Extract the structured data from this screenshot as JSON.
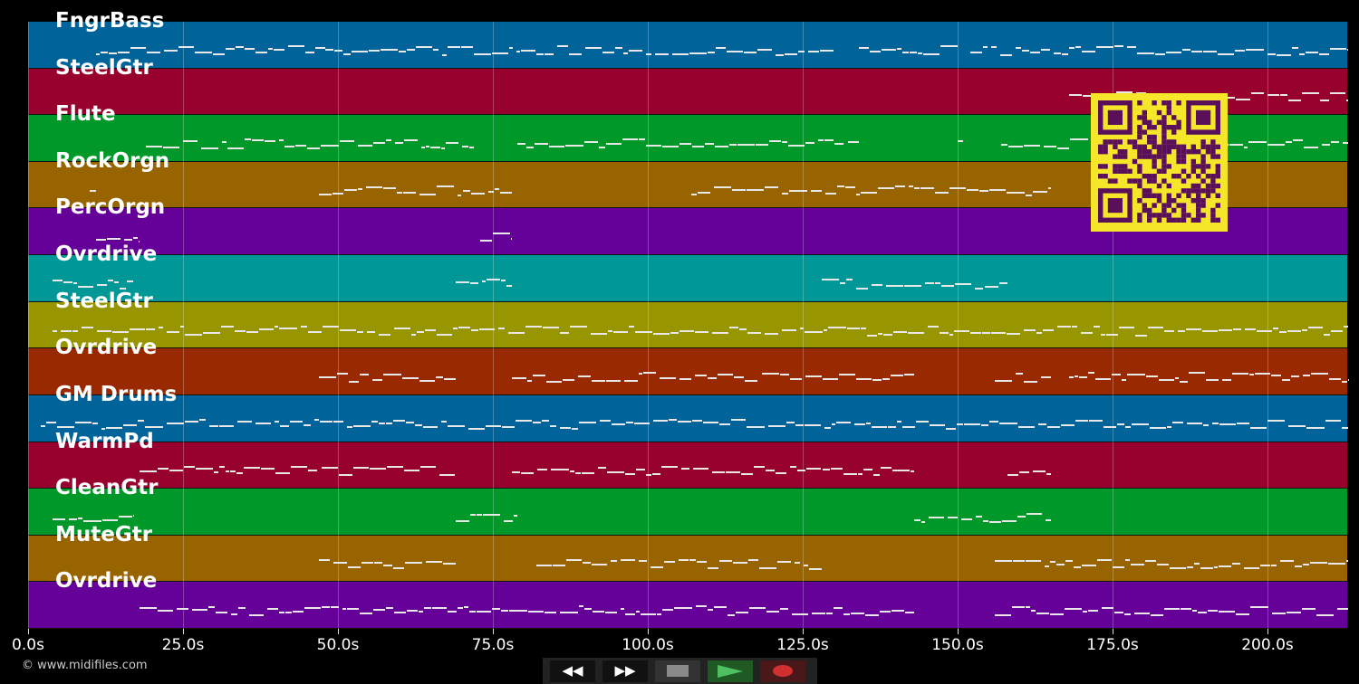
{
  "tracks": [
    {
      "name": "FngrBass",
      "color": "#00649a",
      "notes": [
        [
          11,
          48
        ],
        [
          48,
          130
        ],
        [
          134,
          150
        ],
        [
          152,
          213
        ]
      ]
    },
    {
      "name": "SteelGtr",
      "color": "#98002e",
      "notes": [
        [
          168,
          213
        ]
      ]
    },
    {
      "name": "Flute",
      "color": "#009929",
      "notes": [
        [
          19,
          72
        ],
        [
          79,
          134
        ],
        [
          150,
          151
        ],
        [
          157,
          213
        ]
      ]
    },
    {
      "name": "RockOrgn",
      "color": "#986400",
      "notes": [
        [
          10,
          11
        ],
        [
          47,
          78
        ],
        [
          107,
          165
        ]
      ]
    },
    {
      "name": "PercOrgn",
      "color": "#650098",
      "notes": [
        [
          11,
          18
        ],
        [
          73,
          78
        ]
      ]
    },
    {
      "name": "Ovrdrive",
      "color": "#009896",
      "notes": [
        [
          4,
          17
        ],
        [
          69,
          78
        ],
        [
          128,
          158
        ]
      ]
    },
    {
      "name": "SteelGtr",
      "color": "#989600",
      "notes": [
        [
          4,
          213
        ]
      ]
    },
    {
      "name": "Ovrdrive",
      "color": "#982900",
      "notes": [
        [
          47,
          69
        ],
        [
          78,
          143
        ],
        [
          156,
          165
        ],
        [
          168,
          213
        ]
      ]
    },
    {
      "name": "GM Drums",
      "color": "#00649a",
      "notes": [
        [
          2,
          213
        ]
      ]
    },
    {
      "name": "WarmPd",
      "color": "#98002e",
      "notes": [
        [
          18,
          69
        ],
        [
          78,
          143
        ],
        [
          158,
          165
        ]
      ]
    },
    {
      "name": "CleanGtr",
      "color": "#009929",
      "notes": [
        [
          4,
          17
        ],
        [
          69,
          79
        ],
        [
          143,
          165
        ]
      ]
    },
    {
      "name": "MuteGtr",
      "color": "#986400",
      "notes": [
        [
          47,
          69
        ],
        [
          82,
          128
        ],
        [
          156,
          213
        ]
      ]
    },
    {
      "name": "Ovrdrive",
      "color": "#650098",
      "notes": [
        [
          18,
          143
        ],
        [
          156,
          213
        ]
      ]
    }
  ],
  "axis": {
    "max_seconds": 213,
    "ticks": [
      "0.0s",
      "25.0s",
      "50.0s",
      "75.0s",
      "100.0s",
      "125.0s",
      "150.0s",
      "175.0s",
      "200.0s"
    ],
    "tick_values": [
      0,
      25,
      50,
      75,
      100,
      125,
      150,
      175,
      200
    ]
  },
  "controls": {
    "rewind": "◀◀",
    "forward": "▶▶",
    "stop_color": "#8a8a8a",
    "play_color": "#4fc060",
    "record_color": "#d03030"
  },
  "copyright": "© www.midifiles.com"
}
